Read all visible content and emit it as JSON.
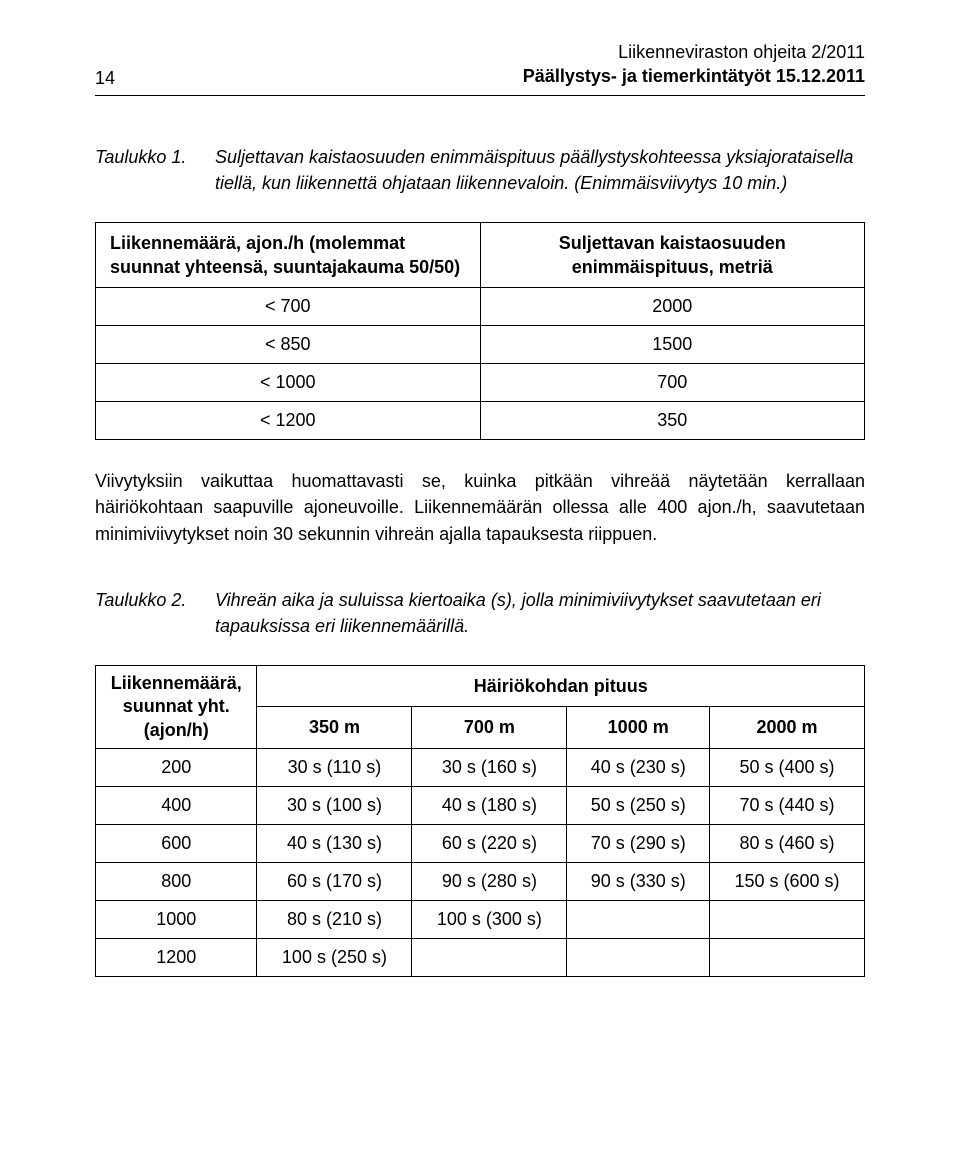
{
  "header": {
    "page_number": "14",
    "line1": "Liikenneviraston ohjeita 2/2011",
    "line2": "Päällystys- ja tiemerkintätyöt 15.12.2011"
  },
  "table1": {
    "caption_label": "Taulukko 1.",
    "caption_desc": "Suljettavan kaistaosuuden enimmäispituus päällystyskohteessa yksiajorataisella tiellä, kun liikennettä ohjataan liikennevaloin. (Enimmäisviivytys 10 min.)",
    "header_left": "Liikennemäärä, ajon./h (molemmat suunnat yhteensä, suuntajakauma 50/50)",
    "header_right": "Suljettavan kaistaosuuden enimmäispituus, metriä",
    "rows": [
      {
        "c1": "< 700",
        "c2": "2000"
      },
      {
        "c1": "< 850",
        "c2": "1500"
      },
      {
        "c1": "< 1000",
        "c2": "700"
      },
      {
        "c1": "< 1200",
        "c2": "350"
      }
    ]
  },
  "paragraph": "Viivytyksiin vaikuttaa huomattavasti se, kuinka pitkään vihreää näytetään kerrallaan häiriökohtaan saapuville ajoneuvoille. Liikennemäärän ollessa alle 400 ajon./h, saavutetaan minimiviivytykset noin 30 sekunnin vihreän ajalla tapauksesta riippuen.",
  "table2": {
    "caption_label": "Taulukko 2.",
    "caption_desc": "Vihreän aika ja suluissa kiertoaika (s), jolla minimiviivytykset saavutetaan eri tapauksissa eri liikennemäärillä.",
    "header_left_line1": "Liikennemäärä,",
    "header_left_line2": "suunnat yht.",
    "header_left_line3": "(ajon/h)",
    "header_top": "Häiriökohdan pituus",
    "cols": [
      "350 m",
      "700 m",
      "1000 m",
      "2000 m"
    ],
    "rows": [
      {
        "label": "200",
        "cells": [
          "30 s (110 s)",
          "30 s (160 s)",
          "40 s (230 s)",
          "50 s (400 s)"
        ]
      },
      {
        "label": "400",
        "cells": [
          "30 s (100 s)",
          "40 s (180 s)",
          "50 s (250 s)",
          "70 s (440 s)"
        ]
      },
      {
        "label": "600",
        "cells": [
          "40 s (130 s)",
          "60 s (220 s)",
          "70 s (290 s)",
          "80 s (460 s)"
        ]
      },
      {
        "label": "800",
        "cells": [
          "60 s (170 s)",
          "90 s (280 s)",
          "90 s (330 s)",
          "150 s (600 s)"
        ]
      },
      {
        "label": "1000",
        "cells": [
          "80 s (210 s)",
          "100 s (300 s)",
          "",
          ""
        ]
      },
      {
        "label": "1200",
        "cells": [
          "100 s (250 s)",
          "",
          "",
          ""
        ]
      }
    ]
  }
}
